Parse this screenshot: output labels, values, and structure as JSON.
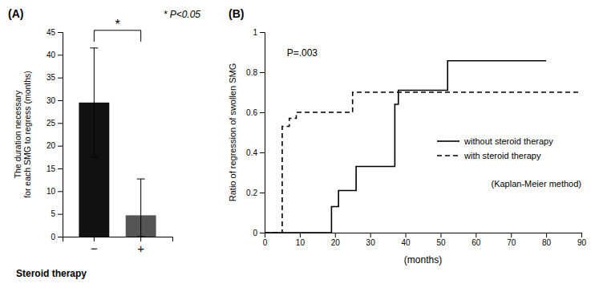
{
  "chart_data": [
    {
      "type": "bar",
      "title": "(A)",
      "categories": [
        "−",
        "+"
      ],
      "values": [
        29.5,
        4.7
      ],
      "colors": [
        "#111111",
        "#555555"
      ],
      "error_up": [
        12.0,
        8.0
      ],
      "error_down": [
        12.0,
        4.7
      ],
      "xlabel": "Steroid therapy",
      "ylabel": "The duration necessary\nfor each SMG to regress (months)",
      "ylim": [
        0,
        45
      ],
      "yticks": [
        0,
        5,
        10,
        15,
        20,
        25,
        30,
        35,
        40,
        45
      ],
      "annotations": [
        "* P<0.05",
        "*"
      ],
      "grid": false
    },
    {
      "type": "step",
      "title": "(B)",
      "series": [
        {
          "name": "without steroid therapy",
          "color": "#000000",
          "line_style": "solid",
          "x": [
            0,
            18,
            19,
            20,
            21,
            26,
            37,
            38,
            40,
            52,
            80
          ],
          "values": [
            0,
            0,
            0.13,
            0.13,
            0.21,
            0.33,
            0.64,
            0.71,
            0.71,
            0.857,
            0.857
          ]
        },
        {
          "name": "with steroid therapy",
          "color": "#000000",
          "line_style": "dashed",
          "x": [
            0,
            5,
            7,
            9,
            25,
            40,
            90
          ],
          "values": [
            0,
            0.53,
            0.57,
            0.6,
            0.7,
            0.7,
            0.7
          ]
        }
      ],
      "xlabel": "(months)",
      "ylabel": "Ratio of regression of swollen SMG",
      "xlim": [
        0,
        90
      ],
      "xticks": [
        0,
        10,
        20,
        30,
        40,
        50,
        60,
        70,
        80,
        90
      ],
      "ylim": [
        0,
        1.0
      ],
      "yticks": [
        0,
        0.2,
        0.4,
        0.6,
        0.8,
        1.0
      ],
      "annotations": [
        "P=.003",
        "(Kaplan-Meier method)"
      ],
      "legend": "right",
      "grid": false
    }
  ]
}
